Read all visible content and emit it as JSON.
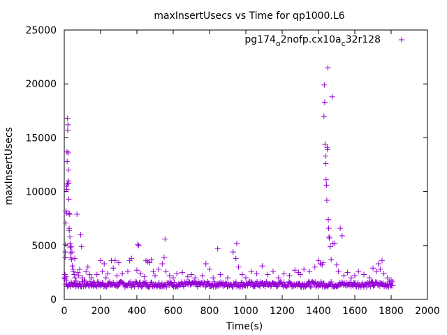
{
  "chart_data": {
    "type": "scatter",
    "title": "maxInsertUsecs vs Time for qp1000.L6",
    "xlabel": "Time(s)",
    "ylabel": "maxInsertUsecs",
    "xlim": [
      0,
      2000
    ],
    "ylim": [
      0,
      25000
    ],
    "x_ticks": [
      0,
      200,
      400,
      600,
      800,
      1000,
      1200,
      1400,
      1600,
      1800,
      2000
    ],
    "y_ticks": [
      0,
      5000,
      10000,
      15000,
      20000,
      25000
    ],
    "grid": false,
    "legend_position": "top-right",
    "marker": "plus",
    "series": [
      {
        "name": "pg174_o2nofp.cx10a_c32r128",
        "legend_parts": {
          "a": "pg174",
          "sub1": "o",
          "b": "2nofp.cx10a",
          "sub2": "c",
          "c": "32r128"
        },
        "color": "#9400d3",
        "points": [
          [
            2,
            2000
          ],
          [
            3,
            1900
          ],
          [
            4,
            2300
          ],
          [
            5,
            3900
          ],
          [
            6,
            4400
          ],
          [
            7,
            5100
          ],
          [
            8,
            7100
          ],
          [
            9,
            8200
          ],
          [
            10,
            2100
          ],
          [
            11,
            1800
          ],
          [
            12,
            10500
          ],
          [
            13,
            10200
          ],
          [
            14,
            8000
          ],
          [
            15,
            13700
          ],
          [
            16,
            12800
          ],
          [
            17,
            10700
          ],
          [
            18,
            16800
          ],
          [
            19,
            15700
          ],
          [
            20,
            16200
          ],
          [
            21,
            13600
          ],
          [
            22,
            12000
          ],
          [
            23,
            11000
          ],
          [
            24,
            10800
          ],
          [
            25,
            9300
          ],
          [
            26,
            8000
          ],
          [
            27,
            6600
          ],
          [
            28,
            6400
          ],
          [
            30,
            7900
          ],
          [
            31,
            5800
          ],
          [
            32,
            5200
          ],
          [
            33,
            4800
          ],
          [
            35,
            4300
          ],
          [
            36,
            3900
          ],
          [
            38,
            4900
          ],
          [
            40,
            3700
          ],
          [
            42,
            4400
          ],
          [
            45,
            3100
          ],
          [
            48,
            2800
          ],
          [
            50,
            2600
          ],
          [
            55,
            2300
          ],
          [
            58,
            3800
          ],
          [
            60,
            2000
          ],
          [
            65,
            1700
          ],
          [
            70,
            7900
          ],
          [
            75,
            2500
          ],
          [
            80,
            2200
          ],
          [
            85,
            2800
          ],
          [
            90,
            6000
          ],
          [
            95,
            4900
          ],
          [
            100,
            2000
          ],
          [
            110,
            1800
          ],
          [
            120,
            2600
          ],
          [
            130,
            3000
          ],
          [
            140,
            2300
          ],
          [
            150,
            2000
          ],
          [
            160,
            1600
          ],
          [
            180,
            2300
          ],
          [
            200,
            3600
          ],
          [
            210,
            2600
          ],
          [
            220,
            3300
          ],
          [
            230,
            2000
          ],
          [
            240,
            2400
          ],
          [
            260,
            3600
          ],
          [
            270,
            2900
          ],
          [
            280,
            3600
          ],
          [
            290,
            2200
          ],
          [
            300,
            3400
          ],
          [
            320,
            2400
          ],
          [
            350,
            2600
          ],
          [
            360,
            3600
          ],
          [
            370,
            3800
          ],
          [
            400,
            2700
          ],
          [
            405,
            5100
          ],
          [
            410,
            5000
          ],
          [
            420,
            2400
          ],
          [
            440,
            2100
          ],
          [
            450,
            3600
          ],
          [
            460,
            3500
          ],
          [
            470,
            3400
          ],
          [
            480,
            3700
          ],
          [
            490,
            2600
          ],
          [
            500,
            2200
          ],
          [
            520,
            2800
          ],
          [
            540,
            3300
          ],
          [
            550,
            3900
          ],
          [
            555,
            5600
          ],
          [
            560,
            2600
          ],
          [
            580,
            2200
          ],
          [
            600,
            2000
          ],
          [
            620,
            2400
          ],
          [
            650,
            2500
          ],
          [
            680,
            2100
          ],
          [
            700,
            2300
          ],
          [
            720,
            2000
          ],
          [
            760,
            2200
          ],
          [
            780,
            3300
          ],
          [
            800,
            2800
          ],
          [
            820,
            2000
          ],
          [
            845,
            4700
          ],
          [
            860,
            2300
          ],
          [
            900,
            2000
          ],
          [
            930,
            4400
          ],
          [
            945,
            3800
          ],
          [
            950,
            5200
          ],
          [
            960,
            3000
          ],
          [
            980,
            2300
          ],
          [
            1000,
            2000
          ],
          [
            1030,
            2600
          ],
          [
            1060,
            2400
          ],
          [
            1090,
            3100
          ],
          [
            1120,
            2300
          ],
          [
            1150,
            2600
          ],
          [
            1180,
            2000
          ],
          [
            1210,
            2400
          ],
          [
            1240,
            2200
          ],
          [
            1270,
            2700
          ],
          [
            1290,
            2500
          ],
          [
            1300,
            2300
          ],
          [
            1320,
            2800
          ],
          [
            1350,
            2600
          ],
          [
            1380,
            3000
          ],
          [
            1400,
            3600
          ],
          [
            1410,
            3300
          ],
          [
            1420,
            3200
          ],
          [
            1425,
            3400
          ],
          [
            1430,
            17000
          ],
          [
            1432,
            19900
          ],
          [
            1434,
            18300
          ],
          [
            1436,
            14400
          ],
          [
            1438,
            13300
          ],
          [
            1440,
            12600
          ],
          [
            1442,
            11100
          ],
          [
            1444,
            10600
          ],
          [
            1446,
            9200
          ],
          [
            1448,
            14100
          ],
          [
            1450,
            13900
          ],
          [
            1452,
            21500
          ],
          [
            1454,
            7400
          ],
          [
            1456,
            6600
          ],
          [
            1458,
            5800
          ],
          [
            1460,
            5700
          ],
          [
            1465,
            4900
          ],
          [
            1470,
            3700
          ],
          [
            1475,
            18800
          ],
          [
            1480,
            5200
          ],
          [
            1490,
            5200
          ],
          [
            1500,
            3200
          ],
          [
            1510,
            2600
          ],
          [
            1520,
            6600
          ],
          [
            1530,
            5900
          ],
          [
            1540,
            2200
          ],
          [
            1560,
            2500
          ],
          [
            1580,
            2000
          ],
          [
            1600,
            2200
          ],
          [
            1620,
            2600
          ],
          [
            1650,
            2300
          ],
          [
            1680,
            2000
          ],
          [
            1700,
            2900
          ],
          [
            1720,
            2600
          ],
          [
            1730,
            3300
          ],
          [
            1740,
            2800
          ],
          [
            1750,
            3600
          ],
          [
            1760,
            2400
          ],
          [
            1780,
            2000
          ],
          [
            1800,
            1800
          ]
        ],
        "baseline": {
          "x_start": 10,
          "x_end": 1810,
          "y_low": 1150,
          "y_high": 1650
        }
      }
    ]
  }
}
